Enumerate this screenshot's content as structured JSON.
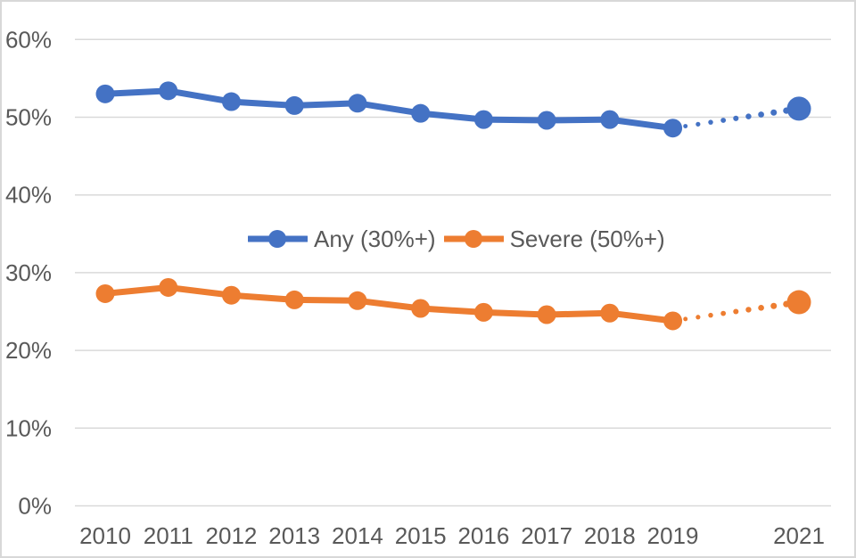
{
  "chart_data": {
    "type": "line",
    "categories": [
      "2010",
      "2011",
      "2012",
      "2013",
      "2014",
      "2015",
      "2016",
      "2017",
      "2018",
      "2019",
      "2021"
    ],
    "series": [
      {
        "name": "Any (30%+)",
        "color": "#4472C4",
        "values": [
          53.0,
          53.4,
          52.0,
          51.5,
          51.8,
          50.5,
          49.7,
          49.6,
          49.7,
          48.6,
          51.1
        ],
        "solid_through": "2019",
        "dotted_segment": [
          "2019",
          "2021"
        ]
      },
      {
        "name": "Severe (50%+)",
        "color": "#ED7D31",
        "values": [
          27.3,
          28.1,
          27.1,
          26.5,
          26.4,
          25.4,
          24.9,
          24.6,
          24.8,
          23.8,
          26.2
        ],
        "solid_through": "2019",
        "dotted_segment": [
          "2019",
          "2021"
        ]
      }
    ],
    "title": "",
    "xlabel": "",
    "ylabel": "",
    "ylim": [
      0,
      60
    ],
    "y_ticks": [
      "0%",
      "10%",
      "20%",
      "30%",
      "40%",
      "50%",
      "60%"
    ],
    "y_tick_values": [
      0,
      10,
      20,
      30,
      40,
      50,
      60
    ],
    "grid": true,
    "legend_position": "inside-center"
  },
  "style": {
    "grid_color": "#D9D9D9",
    "axis_text_color": "#595959",
    "legend_text_color": "#595959",
    "background": "#FFFFFF",
    "frame_border_color": "#D8D8D8"
  }
}
